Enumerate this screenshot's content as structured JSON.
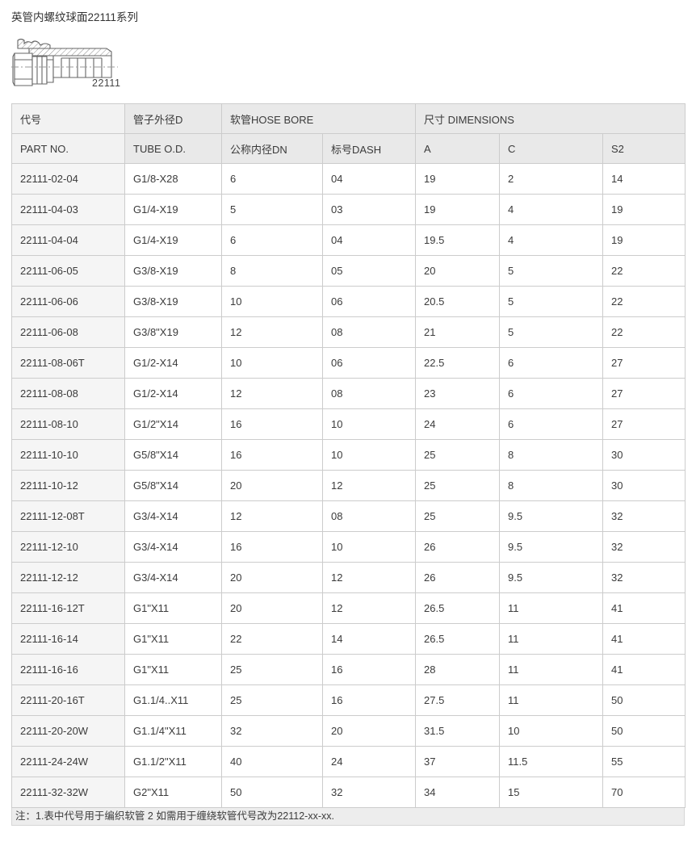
{
  "page": {
    "title": "英管内螺纹球面22111系列",
    "figure_label": "22111",
    "note": "注：1.表中代号用于编织软管 2 如需用于缠绕软管代号改为22112-xx-xx."
  },
  "table": {
    "header_row1": {
      "part_no": "代号",
      "tube_od": "管子外径D",
      "hose_bore": "软管HOSE BORE",
      "dimensions": "尺寸 DIMENSIONS"
    },
    "header_row2": [
      "PART NO.",
      "TUBE O.D.",
      "公称内径DN",
      "标号DASH",
      "A",
      "C",
      "S2"
    ],
    "rows": [
      [
        "22111-02-04",
        "G1/8-X28",
        "6",
        "04",
        "19",
        "2",
        "14"
      ],
      [
        "22111-04-03",
        "G1/4-X19",
        "5",
        "03",
        "19",
        "4",
        "19"
      ],
      [
        "22111-04-04",
        "G1/4-X19",
        "6",
        "04",
        "19.5",
        "4",
        "19"
      ],
      [
        "22111-06-05",
        "G3/8-X19",
        "8",
        "05",
        "20",
        "5",
        "22"
      ],
      [
        "22111-06-06",
        "G3/8-X19",
        "10",
        "06",
        "20.5",
        "5",
        "22"
      ],
      [
        "22111-06-08",
        "G3/8\"X19",
        "12",
        "08",
        "21",
        "5",
        "22"
      ],
      [
        "22111-08-06T",
        "G1/2-X14",
        "10",
        "06",
        "22.5",
        "6",
        "27"
      ],
      [
        "22111-08-08",
        "G1/2-X14",
        "12",
        "08",
        "23",
        "6",
        "27"
      ],
      [
        "22111-08-10",
        "G1/2\"X14",
        "16",
        "10",
        "24",
        "6",
        "27"
      ],
      [
        "22111-10-10",
        "G5/8\"X14",
        "16",
        "10",
        "25",
        "8",
        "30"
      ],
      [
        "22111-10-12",
        "G5/8\"X14",
        "20",
        "12",
        "25",
        "8",
        "30"
      ],
      [
        "22111-12-08T",
        "G3/4-X14",
        "12",
        "08",
        "25",
        "9.5",
        "32"
      ],
      [
        "22111-12-10",
        "G3/4-X14",
        "16",
        "10",
        "26",
        "9.5",
        "32"
      ],
      [
        "22111-12-12",
        "G3/4-X14",
        "20",
        "12",
        "26",
        "9.5",
        "32"
      ],
      [
        "22111-16-12T",
        "G1\"X11",
        "20",
        "12",
        "26.5",
        "11",
        "41"
      ],
      [
        "22111-16-14",
        "G1\"X11",
        "22",
        "14",
        "26.5",
        "11",
        "41"
      ],
      [
        "22111-16-16",
        "G1\"X11",
        "25",
        "16",
        "28",
        "11",
        "41"
      ],
      [
        "22111-20-16T",
        "G1.1/4..X11",
        "25",
        "16",
        "27.5",
        "11",
        "50"
      ],
      [
        "22111-20-20W",
        "G1.1/4\"X11",
        "32",
        "20",
        "31.5",
        "10",
        "50"
      ],
      [
        "22111-24-24W",
        "G1.1/2\"X11",
        "40",
        "24",
        "37",
        "11.5",
        "55"
      ],
      [
        "22111-32-32W",
        "G2\"X11",
        "50",
        "32",
        "34",
        "15",
        "70"
      ]
    ]
  },
  "colors": {
    "header_bg": "#e9e9e9",
    "first_col_bg": "#f5f5f5",
    "border": "#cccccc",
    "note_bg": "#ededed",
    "text": "#3b3b3b",
    "drawing_stroke": "#666666"
  }
}
